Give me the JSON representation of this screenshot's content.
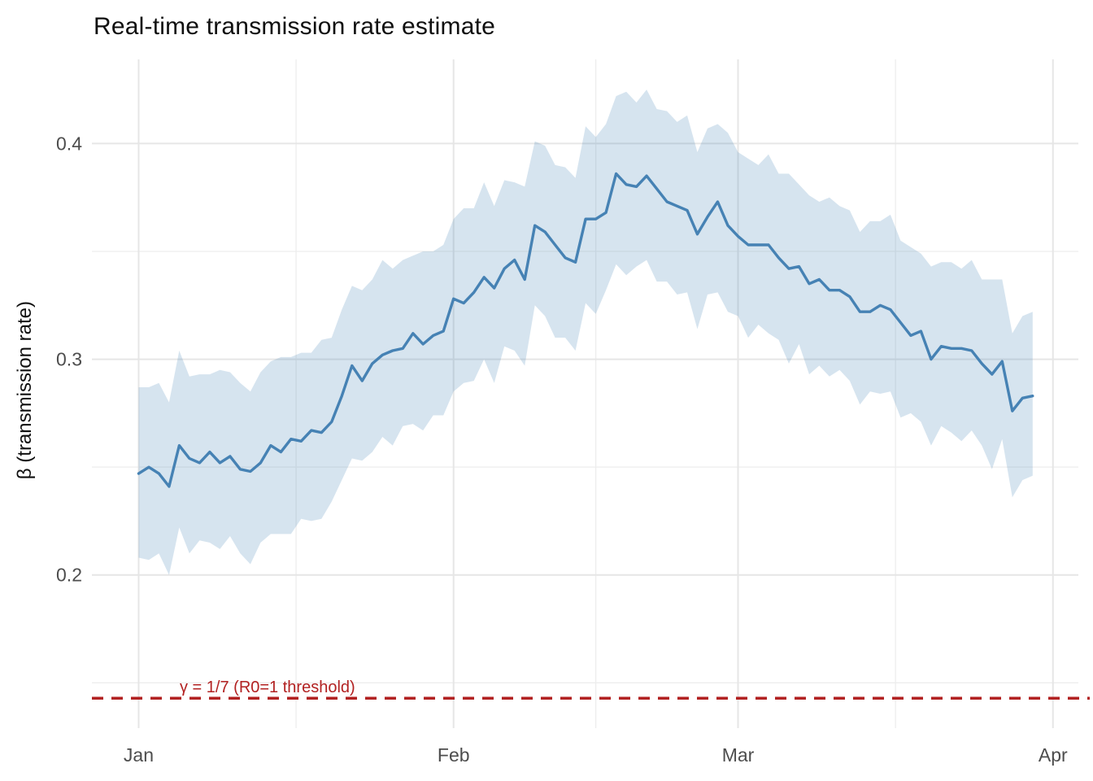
{
  "chart_data": {
    "type": "line",
    "title": "Real-time transmission rate estimate",
    "xlabel": "",
    "ylabel": "β (transmission rate)",
    "legend": "none",
    "grid": {
      "major_color": "#E6E6E6",
      "minor_color": "#EDEDED",
      "background": "#FFFFFF"
    },
    "x_axis": {
      "unit": "day",
      "start_label": "Jan 1",
      "end_label": "Mar 30",
      "n_points": 89,
      "domain_days": [
        -4.6,
        92.5
      ],
      "ticks": [
        {
          "day": 0,
          "label": "Jan"
        },
        {
          "day": 31,
          "label": "Feb"
        },
        {
          "day": 59,
          "label": "Mar"
        },
        {
          "day": 90,
          "label": "Apr"
        }
      ],
      "minor_days": [
        15.5,
        45,
        74.5
      ]
    },
    "y_axis": {
      "domain": [
        0.129,
        0.439
      ],
      "ticks": [
        {
          "value": 0.4,
          "label": "0.4"
        },
        {
          "value": 0.3,
          "label": "0.3"
        },
        {
          "value": 0.2,
          "label": "0.2"
        }
      ],
      "minor": [
        0.35,
        0.25,
        0.15
      ]
    },
    "series": [
      {
        "name": "beta_transmission_rate_estimate",
        "role": "mean_line",
        "color": "#4682B4",
        "values": [
          0.247,
          0.25,
          0.247,
          0.241,
          0.26,
          0.254,
          0.252,
          0.257,
          0.252,
          0.255,
          0.249,
          0.248,
          0.252,
          0.26,
          0.257,
          0.263,
          0.262,
          0.267,
          0.266,
          0.271,
          0.283,
          0.297,
          0.29,
          0.298,
          0.302,
          0.304,
          0.305,
          0.312,
          0.307,
          0.311,
          0.313,
          0.328,
          0.326,
          0.331,
          0.338,
          0.333,
          0.342,
          0.346,
          0.337,
          0.362,
          0.359,
          0.353,
          0.347,
          0.345,
          0.365,
          0.365,
          0.368,
          0.386,
          0.381,
          0.38,
          0.385,
          0.379,
          0.373,
          0.371,
          0.369,
          0.358,
          0.366,
          0.373,
          0.362,
          0.357,
          0.353,
          0.353,
          0.353,
          0.347,
          0.342,
          0.343,
          0.335,
          0.337,
          0.332,
          0.332,
          0.329,
          0.322,
          0.322,
          0.325,
          0.323,
          0.317,
          0.311,
          0.313,
          0.3,
          0.306,
          0.305,
          0.305,
          0.304,
          0.298,
          0.293,
          0.299,
          0.276,
          0.282,
          0.283
        ]
      },
      {
        "name": "uncertainty_band_upper",
        "role": "band_upper",
        "values": [
          0.287,
          0.287,
          0.289,
          0.28,
          0.304,
          0.292,
          0.293,
          0.293,
          0.295,
          0.294,
          0.289,
          0.285,
          0.294,
          0.299,
          0.301,
          0.301,
          0.303,
          0.303,
          0.309,
          0.31,
          0.323,
          0.334,
          0.332,
          0.337,
          0.346,
          0.342,
          0.346,
          0.348,
          0.35,
          0.35,
          0.353,
          0.365,
          0.37,
          0.37,
          0.382,
          0.371,
          0.383,
          0.382,
          0.38,
          0.401,
          0.399,
          0.39,
          0.389,
          0.384,
          0.408,
          0.403,
          0.409,
          0.422,
          0.424,
          0.419,
          0.425,
          0.416,
          0.415,
          0.41,
          0.413,
          0.396,
          0.407,
          0.409,
          0.405,
          0.396,
          0.393,
          0.39,
          0.395,
          0.386,
          0.386,
          0.381,
          0.376,
          0.373,
          0.375,
          0.371,
          0.369,
          0.359,
          0.364,
          0.364,
          0.367,
          0.355,
          0.352,
          0.349,
          0.343,
          0.345,
          0.345,
          0.342,
          0.346,
          0.337,
          0.337,
          0.337,
          0.312,
          0.32,
          0.322
        ]
      },
      {
        "name": "uncertainty_band_lower",
        "role": "band_lower",
        "values": [
          0.208,
          0.207,
          0.21,
          0.2,
          0.222,
          0.21,
          0.216,
          0.215,
          0.212,
          0.218,
          0.21,
          0.205,
          0.215,
          0.219,
          0.219,
          0.219,
          0.226,
          0.225,
          0.226,
          0.234,
          0.244,
          0.254,
          0.253,
          0.257,
          0.264,
          0.26,
          0.269,
          0.27,
          0.267,
          0.274,
          0.274,
          0.285,
          0.289,
          0.29,
          0.3,
          0.289,
          0.306,
          0.304,
          0.297,
          0.325,
          0.32,
          0.31,
          0.31,
          0.304,
          0.326,
          0.321,
          0.332,
          0.344,
          0.339,
          0.343,
          0.346,
          0.336,
          0.336,
          0.33,
          0.331,
          0.314,
          0.33,
          0.331,
          0.322,
          0.32,
          0.31,
          0.316,
          0.312,
          0.309,
          0.298,
          0.307,
          0.293,
          0.297,
          0.292,
          0.295,
          0.29,
          0.279,
          0.285,
          0.284,
          0.285,
          0.273,
          0.275,
          0.271,
          0.26,
          0.269,
          0.266,
          0.262,
          0.267,
          0.26,
          0.249,
          0.263,
          0.236,
          0.244,
          0.246
        ]
      }
    ],
    "band": {
      "fill": "#4682B4",
      "opacity": 0.22
    },
    "threshold_line": {
      "value": 0.142857,
      "label": "γ = 1/7 (R0=1 threshold)",
      "color": "#B22222",
      "linestyle": "dashed"
    },
    "text_colors": {
      "title": "#0F0F0F",
      "axis_title": "#0F0F0F",
      "tick_labels": "#4D4D4D"
    }
  }
}
